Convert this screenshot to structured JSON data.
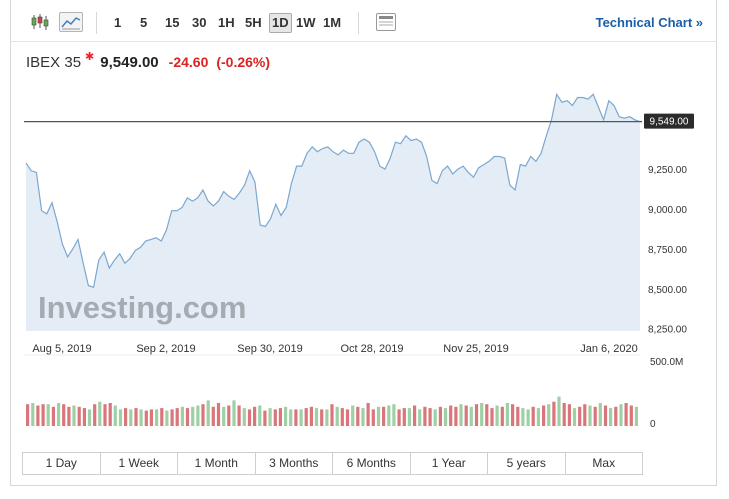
{
  "toolbar": {
    "timeframes": [
      "1",
      "5",
      "15",
      "30",
      "1H",
      "5H",
      "1D",
      "1W",
      "1M"
    ],
    "active_timeframe": "1D",
    "technical_chart_label": "Technical Chart »",
    "icons": [
      "candlestick-chart-icon",
      "line-chart-icon",
      "layout-icon"
    ]
  },
  "quote": {
    "name": "IBEX 35",
    "last": "9,549.00",
    "change": "-24.60",
    "change_pct": "(-0.26%)"
  },
  "watermark": "Investing.com",
  "ranges": [
    "1 Day",
    "1 Week",
    "1 Month",
    "3 Months",
    "6 Months",
    "1 Year",
    "5 years",
    "Max"
  ],
  "colors": {
    "line": "#7ba7d0",
    "area": "#e4edf6",
    "up": "#9fd0a5",
    "down": "#d9767a",
    "change": "#dd2222",
    "link": "#1b5ea8"
  },
  "chart_data": {
    "type": "area",
    "x_tick_labels": [
      "Aug 5, 2019",
      "Sep 2, 2019",
      "Sep 30, 2019",
      "Oct 28, 2019",
      "Nov 25, 2019",
      "Jan 6, 2020"
    ],
    "y_tick_labels": [
      "9,250.00",
      "9,000.00",
      "8,750.00",
      "8,500.00",
      "8,250.00"
    ],
    "y_ticks": [
      9250,
      9000,
      8750,
      8500,
      8250
    ],
    "ylim": [
      8235,
      9810
    ],
    "last_price": 9549,
    "last_price_label": "9,549.00",
    "price": [
      9290,
      9240,
      9230,
      8990,
      8970,
      9040,
      8920,
      8780,
      8700,
      8750,
      8810,
      8660,
      8520,
      8510,
      8680,
      8730,
      8630,
      8680,
      8720,
      8660,
      8690,
      8740,
      8760,
      8800,
      8810,
      8820,
      8800,
      8870,
      8990,
      8990,
      9010,
      9070,
      9050,
      9070,
      9120,
      9050,
      9020,
      9050,
      9110,
      9080,
      9060,
      9100,
      9150,
      9240,
      9170,
      8900,
      8890,
      8940,
      9030,
      8960,
      9010,
      9160,
      9270,
      9270,
      9350,
      9390,
      9360,
      9380,
      9390,
      9360,
      9340,
      9370,
      9350,
      9350,
      9420,
      9440,
      9420,
      9360,
      9270,
      9250,
      9320,
      9420,
      9410,
      9460,
      9430,
      9440,
      9420,
      9330,
      9180,
      9160,
      9240,
      9270,
      9220,
      9250,
      9270,
      9230,
      9200,
      9260,
      9280,
      9300,
      9330,
      9330,
      9320,
      9150,
      9120,
      9280,
      9270,
      9330,
      9300,
      9350,
      9460,
      9560,
      9720,
      9670,
      9680,
      9650,
      9700,
      9700,
      9690,
      9720,
      9640,
      9560,
      9680,
      9650,
      9580,
      9570,
      9580,
      9560,
      9549
    ],
    "volume_axis_labels": [
      "500.0M",
      "0"
    ],
    "volume_max": 500,
    "volume": [
      170,
      180,
      160,
      170,
      170,
      150,
      180,
      170,
      150,
      160,
      150,
      140,
      130,
      170,
      190,
      170,
      180,
      160,
      130,
      140,
      130,
      140,
      130,
      120,
      130,
      130,
      140,
      120,
      130,
      140,
      150,
      140,
      150,
      160,
      170,
      200,
      150,
      180,
      150,
      160,
      200,
      160,
      140,
      130,
      150,
      160,
      120,
      140,
      130,
      140,
      150,
      130,
      130,
      130,
      140,
      150,
      140,
      130,
      130,
      170,
      150,
      140,
      130,
      160,
      150,
      140,
      180,
      130,
      150,
      150,
      160,
      170,
      130,
      140,
      140,
      160,
      130,
      150,
      140,
      130,
      150,
      140,
      160,
      150,
      170,
      160,
      150,
      170,
      180,
      170,
      140,
      160,
      150,
      180,
      170,
      150,
      140,
      130,
      150,
      140,
      160,
      170,
      190,
      230,
      180,
      170,
      140,
      150,
      170,
      160,
      150,
      180,
      160,
      140,
      150,
      170,
      180,
      160,
      150
    ],
    "volume_up": [
      0,
      1,
      0,
      0,
      1,
      0,
      1,
      0,
      0,
      1,
      0,
      0,
      1,
      0,
      1,
      0,
      0,
      1,
      1,
      0,
      1,
      0,
      1,
      0,
      0,
      1,
      0,
      1,
      0,
      0,
      1,
      0,
      1,
      1,
      0,
      1,
      0,
      0,
      1,
      0,
      1,
      0,
      1,
      0,
      0,
      1,
      0,
      1,
      0,
      0,
      1,
      1,
      0,
      1,
      0,
      0,
      1,
      0,
      1,
      0,
      1,
      0,
      0,
      1,
      0,
      1,
      0,
      0,
      1,
      0,
      1,
      1,
      0,
      0,
      1,
      0,
      1,
      0,
      0,
      1,
      0,
      1,
      0,
      0,
      1,
      0,
      1,
      0,
      1,
      0,
      0,
      1,
      0,
      1,
      0,
      0,
      1,
      1,
      0,
      1,
      0,
      1,
      0,
      1,
      0,
      0,
      1,
      0,
      0,
      1,
      0,
      1,
      0,
      1,
      0,
      1,
      0,
      0,
      1
    ]
  }
}
